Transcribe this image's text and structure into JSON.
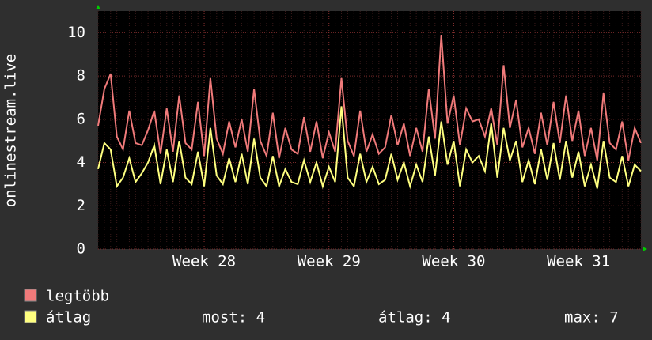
{
  "chart_data": {
    "type": "line",
    "y_label": "onlinestream.live",
    "categories": [
      null,
      null,
      null,
      null,
      null,
      null,
      null,
      null,
      null,
      null,
      null,
      null,
      null,
      null,
      null,
      null,
      null,
      "Week 28",
      null,
      null,
      null,
      null,
      null,
      null,
      null,
      null,
      null,
      null,
      null,
      null,
      null,
      null,
      null,
      null,
      null,
      null,
      null,
      "Week 29",
      null,
      null,
      null,
      null,
      null,
      null,
      null,
      null,
      null,
      null,
      null,
      null,
      null,
      null,
      null,
      null,
      null,
      null,
      null,
      "Week 30",
      null,
      null,
      null,
      null,
      null,
      null,
      null,
      null,
      null,
      null,
      null,
      null,
      null,
      null,
      null,
      null,
      null,
      null,
      null,
      "Week 31",
      null,
      null,
      null,
      null,
      null,
      null,
      null,
      null,
      null,
      null
    ],
    "series": [
      {
        "name": "legtöbb",
        "color": "#f07a7a",
        "values": [
          5.7,
          7.4,
          8.1,
          5.2,
          4.6,
          6.4,
          4.9,
          4.8,
          5.5,
          6.4,
          4.4,
          6.5,
          4.5,
          7.1,
          4.9,
          4.6,
          6.8,
          4.3,
          7.9,
          5.1,
          4.4,
          5.9,
          4.7,
          6.0,
          4.5,
          7.4,
          5.0,
          4.3,
          6.3,
          4.2,
          5.6,
          4.6,
          4.4,
          6.1,
          4.5,
          5.9,
          4.2,
          5.4,
          4.5,
          7.9,
          5.0,
          4.3,
          6.4,
          4.5,
          5.3,
          4.4,
          4.7,
          6.2,
          4.8,
          5.8,
          4.3,
          5.6,
          4.5,
          7.4,
          5.1,
          9.9,
          5.8,
          7.1,
          4.8,
          6.5,
          5.9,
          6.0,
          5.2,
          6.5,
          4.8,
          8.5,
          5.6,
          6.9,
          4.7,
          5.6,
          4.4,
          6.3,
          4.8,
          6.8,
          4.9,
          7.1,
          5.0,
          6.4,
          4.3,
          5.6,
          4.1,
          7.2,
          4.9,
          4.6,
          5.9,
          4.1,
          5.6,
          4.9
        ]
      },
      {
        "name": "átlag",
        "color": "#ffff80",
        "values": [
          3.7,
          4.9,
          4.6,
          2.9,
          3.3,
          4.2,
          3.1,
          3.5,
          4.0,
          4.8,
          3.0,
          4.6,
          3.1,
          5.0,
          3.3,
          3.0,
          4.5,
          2.9,
          5.6,
          3.4,
          3.0,
          4.2,
          3.1,
          4.4,
          3.0,
          5.1,
          3.3,
          2.9,
          4.3,
          2.9,
          3.7,
          3.1,
          3.0,
          4.1,
          3.1,
          4.0,
          2.9,
          3.8,
          3.1,
          6.6,
          3.3,
          2.9,
          4.4,
          3.1,
          3.8,
          3.0,
          3.2,
          4.4,
          3.2,
          4.0,
          2.9,
          3.9,
          3.1,
          5.2,
          3.4,
          5.9,
          3.9,
          5.0,
          2.9,
          4.6,
          4.0,
          4.3,
          3.6,
          5.8,
          3.3,
          5.6,
          4.1,
          5.0,
          3.1,
          4.1,
          3.0,
          4.6,
          3.2,
          4.9,
          3.2,
          5.0,
          3.3,
          4.5,
          2.9,
          3.9,
          2.8,
          5.0,
          3.3,
          3.1,
          4.3,
          2.9,
          3.9,
          3.6
        ]
      }
    ],
    "legend_stats": [
      "most: 4",
      "átlag: 4",
      "max: 7"
    ],
    "ylim": [
      0,
      11
    ],
    "yticks": [
      0,
      2,
      4,
      6,
      8,
      10
    ],
    "grid": true
  }
}
